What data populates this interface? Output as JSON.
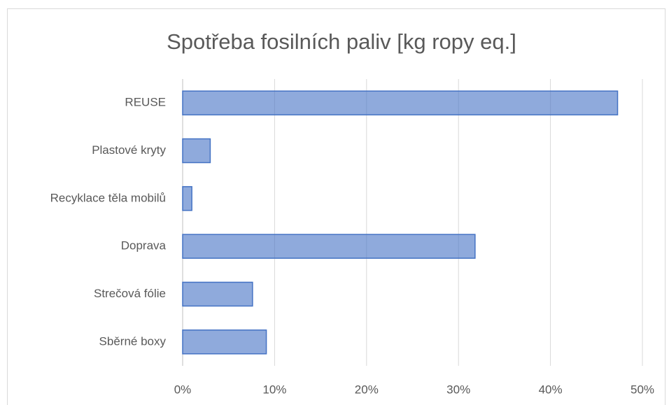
{
  "chart_data": {
    "type": "bar",
    "orientation": "horizontal",
    "title": "Spotřeba fosilních paliv [kg ropy eq.]",
    "categories": [
      "REUSE",
      "Plastové kryty",
      "Recyklace těla mobilů",
      "Doprava",
      "Strečová fólie",
      "Sběrné boxy"
    ],
    "values": [
      47.3,
      3.0,
      1.0,
      31.8,
      7.6,
      9.1
    ],
    "color": "#4472c4",
    "xlim": [
      0,
      50
    ],
    "xticks": [
      {
        "value": 0,
        "label": "0%"
      },
      {
        "value": 10,
        "label": "10%"
      },
      {
        "value": 20,
        "label": "20%"
      },
      {
        "value": 30,
        "label": "30%"
      },
      {
        "value": 40,
        "label": "40%"
      },
      {
        "value": 50,
        "label": "50%"
      }
    ],
    "grid": true
  }
}
